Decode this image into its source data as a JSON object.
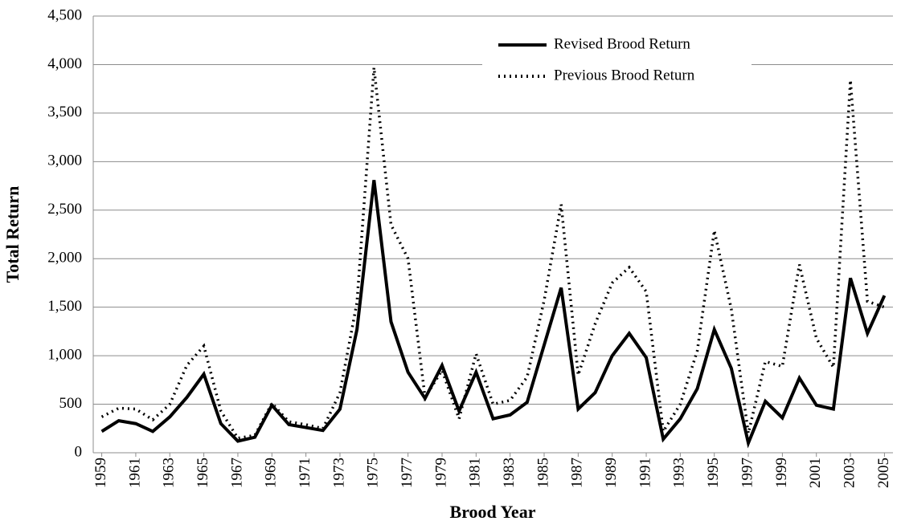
{
  "chart_data": {
    "type": "line",
    "x_label": "Brood Year",
    "y_label": "Total Return",
    "x": [
      1959,
      1960,
      1961,
      1962,
      1963,
      1964,
      1965,
      1966,
      1967,
      1968,
      1969,
      1970,
      1971,
      1972,
      1973,
      1974,
      1975,
      1976,
      1977,
      1978,
      1979,
      1980,
      1981,
      1982,
      1983,
      1984,
      1985,
      1986,
      1987,
      1988,
      1989,
      1990,
      1991,
      1992,
      1993,
      1994,
      1995,
      1996,
      1997,
      1998,
      1999,
      2000,
      2001,
      2002,
      2003,
      2004,
      2005
    ],
    "series": [
      {
        "name": "Revised Brood Return",
        "color": "#000000",
        "dash": "solid",
        "values": [
          220,
          330,
          300,
          220,
          370,
          570,
          810,
          300,
          120,
          160,
          490,
          290,
          260,
          230,
          450,
          1270,
          2810,
          1350,
          830,
          560,
          900,
          430,
          830,
          350,
          390,
          520,
          1110,
          1700,
          450,
          620,
          1000,
          1230,
          980,
          140,
          350,
          660,
          1270,
          870,
          100,
          530,
          360,
          770,
          490,
          450,
          1800,
          1230,
          1620
        ]
      },
      {
        "name": "Previous Brood Return",
        "color": "#000000",
        "dash": "dotted",
        "values": [
          370,
          460,
          450,
          340,
          500,
          900,
          1100,
          430,
          150,
          180,
          510,
          320,
          290,
          250,
          620,
          1550,
          3970,
          2350,
          2000,
          570,
          850,
          350,
          1020,
          500,
          540,
          780,
          1570,
          2560,
          800,
          1330,
          1750,
          1910,
          1660,
          220,
          500,
          1050,
          2290,
          1480,
          200,
          940,
          890,
          1940,
          1180,
          880,
          3840,
          1560,
          1500
        ]
      }
    ],
    "xlim": [
      1958.5,
      2005.5
    ],
    "xticks": [
      1959,
      1961,
      1963,
      1965,
      1967,
      1969,
      1971,
      1973,
      1975,
      1977,
      1979,
      1981,
      1983,
      1985,
      1987,
      1989,
      1991,
      1993,
      1995,
      1997,
      1999,
      2001,
      2003,
      2005
    ],
    "ylim": [
      0,
      4500
    ],
    "yticks": [
      0,
      500,
      {
        "value": 1000,
        "label": "1,000"
      },
      {
        "value": 1500,
        "label": "1,500"
      },
      {
        "value": 2000,
        "label": "2,000"
      },
      {
        "value": 2500,
        "label": "2,500"
      },
      {
        "value": 3000,
        "label": "3,000"
      },
      {
        "value": 3500,
        "label": "3,500"
      },
      {
        "value": 4000,
        "label": "4,000"
      },
      {
        "value": 4500,
        "label": "4,500"
      }
    ],
    "grid": true,
    "legend": "top"
  }
}
